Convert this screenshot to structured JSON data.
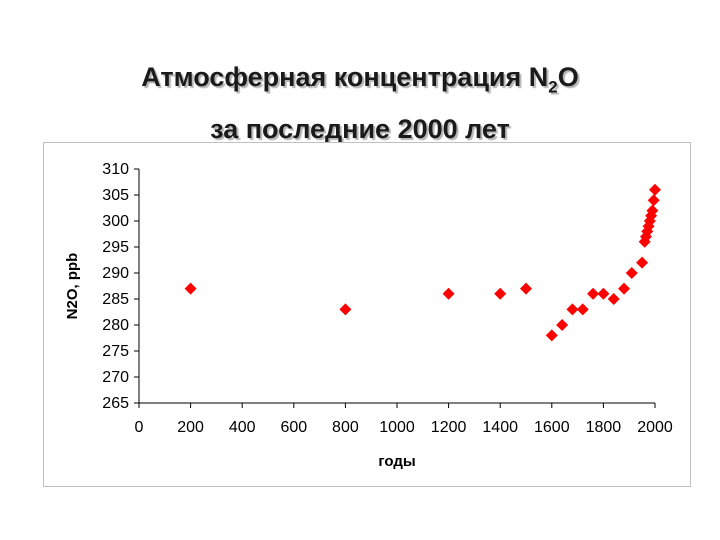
{
  "title": {
    "line1_main": "Атмосферная концентрация N",
    "line1_sub": "2",
    "line1_end": "O",
    "line2": "за последние 2000 лет"
  },
  "chart_data": {
    "type": "scatter",
    "title": "Атмосферная концентрация N2O за последние 2000 лет",
    "xlabel": "годы",
    "ylabel": "N2O, ppb",
    "xlim": [
      0,
      2000
    ],
    "ylim": [
      265,
      310
    ],
    "xticks": [
      0,
      200,
      400,
      600,
      800,
      1000,
      1200,
      1400,
      1600,
      1800,
      2000
    ],
    "yticks": [
      265,
      270,
      275,
      280,
      285,
      290,
      295,
      300,
      305,
      310
    ],
    "grid": false,
    "legend": "none",
    "marker": "diamond",
    "color": "#ff0000",
    "series": [
      {
        "x": [
          200,
          800,
          1200,
          1400,
          1500,
          1600,
          1640,
          1680,
          1720,
          1760,
          1800,
          1840,
          1880,
          1910,
          1950,
          1960,
          1965,
          1970,
          1975,
          1980,
          1985,
          1990,
          1995,
          2000
        ],
        "y": [
          287,
          283,
          286,
          286,
          287,
          278,
          280,
          283,
          283,
          286,
          286,
          285,
          287,
          290,
          292,
          296,
          297,
          298,
          299,
          300,
          301,
          302,
          304,
          306
        ]
      }
    ]
  }
}
